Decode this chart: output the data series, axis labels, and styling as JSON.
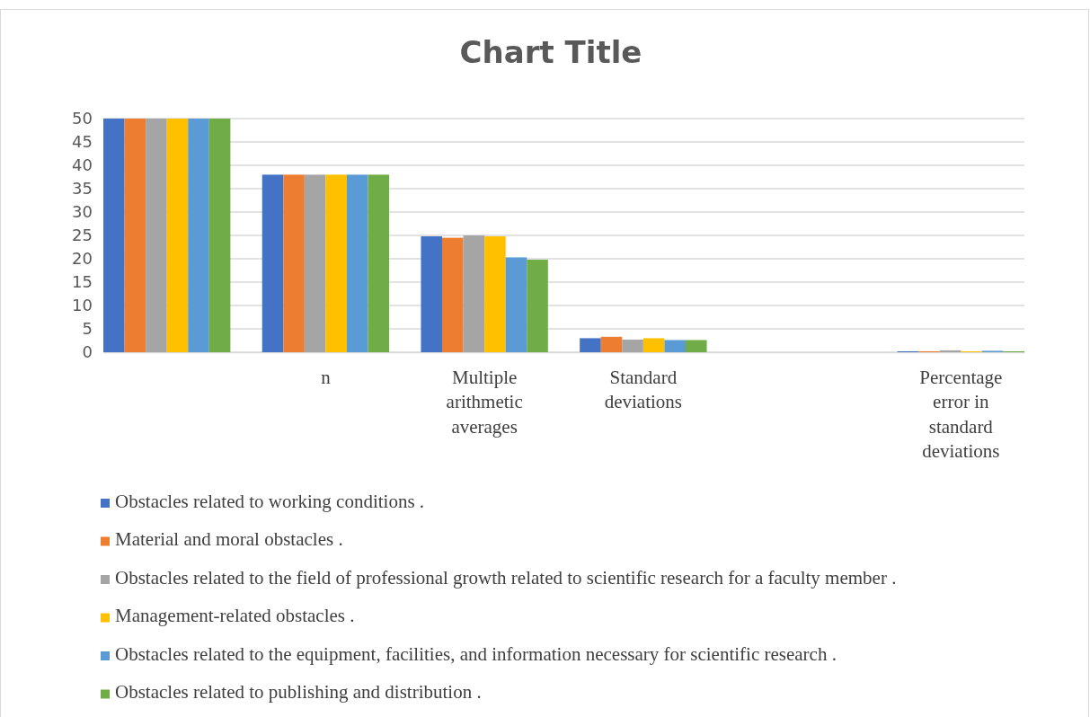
{
  "chart_data": {
    "type": "bar",
    "title": "Chart Title",
    "categories": [
      null,
      "n",
      "Multiple arithmetic averages",
      "Standard deviations",
      null,
      "Percentage error in standard deviations"
    ],
    "series": [
      {
        "name": "Obstacles related to working conditions .",
        "color": "#4472c4",
        "values": [
          50,
          38,
          24.8,
          3.0,
          null,
          0.2
        ]
      },
      {
        "name": "Material and moral obstacles .",
        "color": "#ed7d31",
        "values": [
          50,
          38,
          24.5,
          3.3,
          null,
          0.2
        ]
      },
      {
        "name": "Obstacles related to the field of professional growth related to scientific research for a faculty member .",
        "color": "#a5a5a5",
        "values": [
          50,
          38,
          25,
          2.7,
          null,
          0.4
        ]
      },
      {
        "name": "Management-related obstacles .",
        "color": "#ffc000",
        "values": [
          50,
          38,
          24.8,
          3.0,
          null,
          0.2
        ]
      },
      {
        "name": "Obstacles related to the equipment, facilities, and information necessary for scientific research .",
        "color": "#5b9bd5",
        "values": [
          50,
          38,
          20.3,
          2.6,
          null,
          0.3
        ]
      },
      {
        "name": "Obstacles related to publishing and distribution .",
        "color": "#70ad47",
        "values": [
          50,
          38,
          19.8,
          2.6,
          null,
          0.2
        ]
      }
    ],
    "ylim": [
      0,
      50
    ],
    "yticks": [
      0,
      5,
      10,
      15,
      20,
      25,
      30,
      35,
      40,
      45,
      50
    ],
    "grid": "y",
    "legend": "bottom"
  }
}
